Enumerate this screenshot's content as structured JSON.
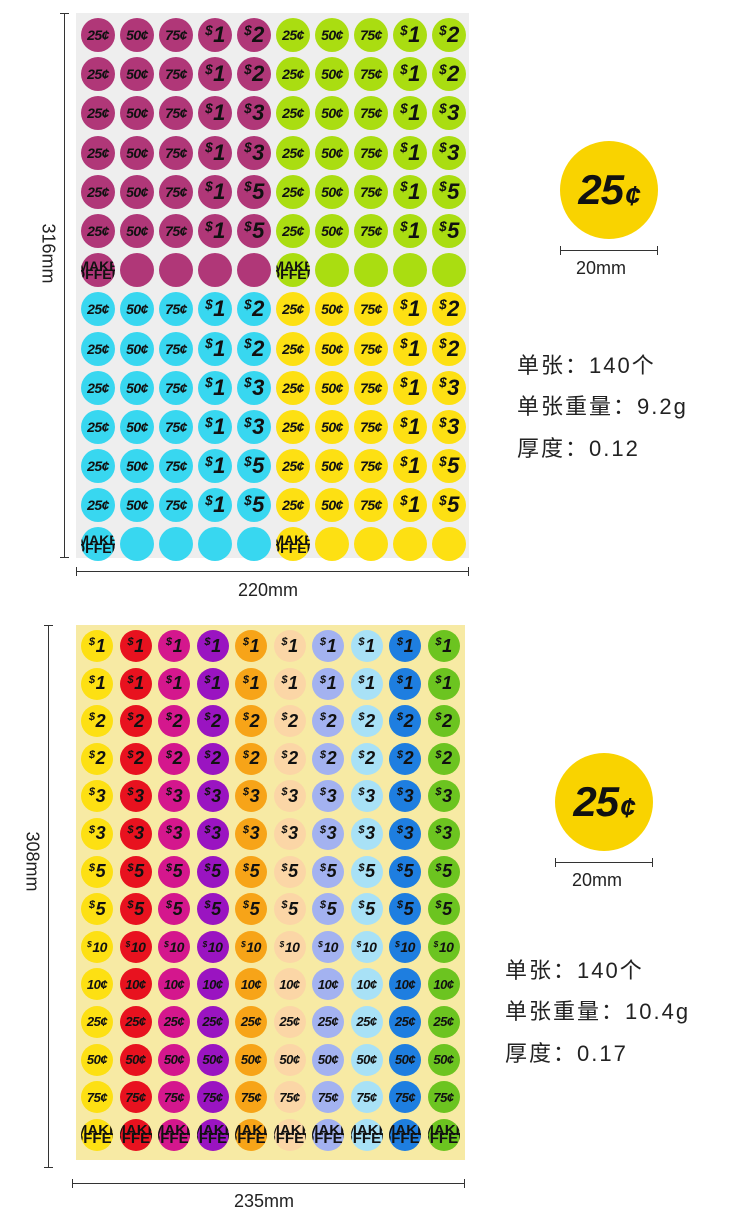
{
  "sheet1": {
    "width_label": "220mm",
    "height_label": "316mm",
    "colors": {
      "magenta": "#b03778",
      "green": "#aadd11",
      "cyan": "#38d7f0",
      "yellow": "#fde013"
    },
    "rows": [
      [
        "25¢",
        "50¢",
        "75¢",
        "$1",
        "$2",
        "25¢",
        "50¢",
        "75¢",
        "$1",
        "$2"
      ],
      [
        "25¢",
        "50¢",
        "75¢",
        "$1",
        "$2",
        "25¢",
        "50¢",
        "75¢",
        "$1",
        "$2"
      ],
      [
        "25¢",
        "50¢",
        "75¢",
        "$1",
        "$3",
        "25¢",
        "50¢",
        "75¢",
        "$1",
        "$3"
      ],
      [
        "25¢",
        "50¢",
        "75¢",
        "$1",
        "$3",
        "25¢",
        "50¢",
        "75¢",
        "$1",
        "$3"
      ],
      [
        "25¢",
        "50¢",
        "75¢",
        "$1",
        "$5",
        "25¢",
        "50¢",
        "75¢",
        "$1",
        "$5"
      ],
      [
        "25¢",
        "50¢",
        "75¢",
        "$1",
        "$5",
        "25¢",
        "50¢",
        "75¢",
        "$1",
        "$5"
      ],
      [
        "MAKE OFFER",
        "",
        "",
        "",
        "",
        "MAKE OFFER",
        "",
        "",
        "",
        ""
      ],
      [
        "25¢",
        "50¢",
        "75¢",
        "$1",
        "$2",
        "25¢",
        "50¢",
        "75¢",
        "$1",
        "$2"
      ],
      [
        "25¢",
        "50¢",
        "75¢",
        "$1",
        "$2",
        "25¢",
        "50¢",
        "75¢",
        "$1",
        "$2"
      ],
      [
        "25¢",
        "50¢",
        "75¢",
        "$1",
        "$3",
        "25¢",
        "50¢",
        "75¢",
        "$1",
        "$3"
      ],
      [
        "25¢",
        "50¢",
        "75¢",
        "$1",
        "$3",
        "25¢",
        "50¢",
        "75¢",
        "$1",
        "$3"
      ],
      [
        "25¢",
        "50¢",
        "75¢",
        "$1",
        "$5",
        "25¢",
        "50¢",
        "75¢",
        "$1",
        "$5"
      ],
      [
        "25¢",
        "50¢",
        "75¢",
        "$1",
        "$5",
        "25¢",
        "50¢",
        "75¢",
        "$1",
        "$5"
      ],
      [
        "MAKE OFFER",
        "",
        "",
        "",
        "",
        "MAKE OFFER",
        "",
        "",
        "",
        ""
      ]
    ],
    "sample": {
      "value": "25",
      "unit": "¢",
      "size_label": "20mm"
    },
    "specs": [
      "单张：140个",
      "单张重量：9.2g",
      "厚度：0.12"
    ]
  },
  "sheet2": {
    "width_label": "235mm",
    "height_label": "308mm",
    "column_colors": [
      "#fde013",
      "#e8121f",
      "#d4178d",
      "#9a14c1",
      "#f7a418",
      "#fbd6a6",
      "#a3b2f0",
      "#a8e1f6",
      "#1e7ee0",
      "#6cc420"
    ],
    "row_labels": [
      "$1",
      "$1",
      "$2",
      "$2",
      "$3",
      "$3",
      "$5",
      "$5",
      "$10",
      "10¢",
      "25¢",
      "50¢",
      "75¢",
      "MAKE OFFER"
    ],
    "sample": {
      "value": "25",
      "unit": "¢",
      "size_label": "20mm"
    },
    "specs": [
      "单张：140个",
      "单张重量：10.4g",
      "厚度：0.17"
    ]
  }
}
